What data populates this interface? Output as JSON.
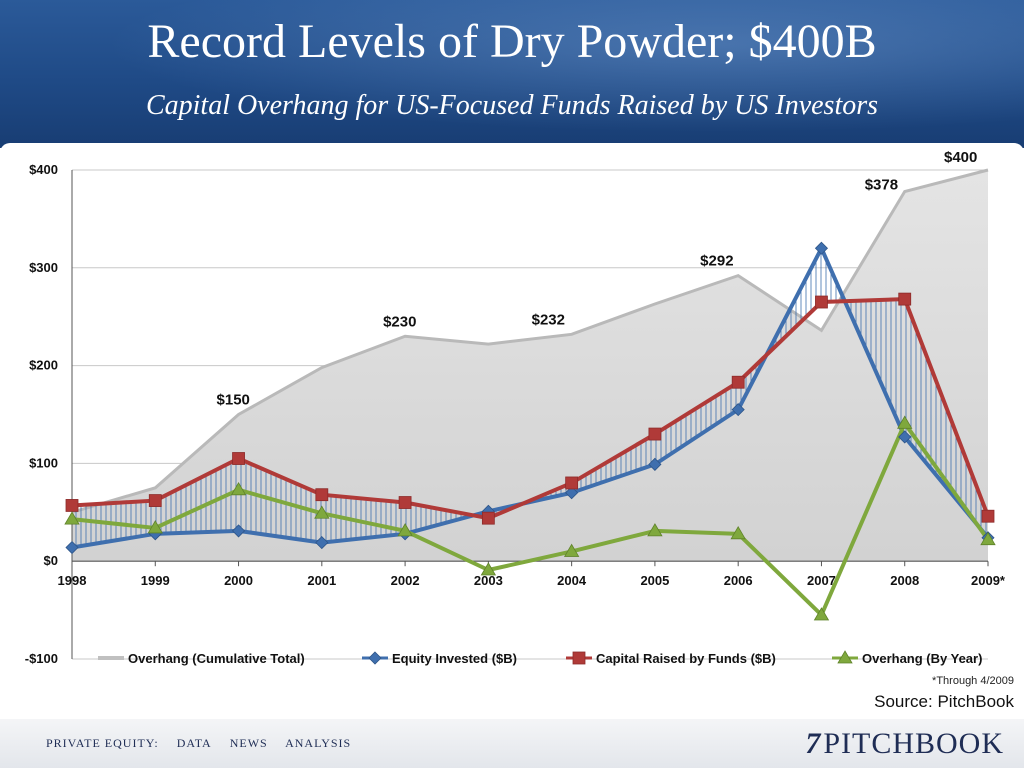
{
  "slide": {
    "title": "Record Levels of Dry Powder; $400B",
    "subtitle": "Capital Overhang for US-Focused Funds Raised by US Investors"
  },
  "footer": {
    "nav": [
      "PRIVATE EQUITY:",
      "DATA",
      "NEWS",
      "ANALYSIS"
    ],
    "brand_mark": "7",
    "brand_name": "PITCHBOOK"
  },
  "notes": {
    "through": "*Through 4/2009",
    "source": "Source: PitchBook"
  },
  "chart_data": {
    "type": "line",
    "categories": [
      "1998",
      "1999",
      "2000",
      "2001",
      "2002",
      "2003",
      "2004",
      "2005",
      "2006",
      "2007",
      "2008",
      "2009*"
    ],
    "ylim": [
      -100,
      400
    ],
    "y_ticks": [
      -100,
      0,
      100,
      200,
      300,
      400
    ],
    "y_tick_labels": [
      "-$100",
      "$0",
      "$100",
      "$200",
      "$300",
      "$400"
    ],
    "grid": true,
    "legend_position": "bottom",
    "series": [
      {
        "name": "Overhang (Cumulative Total)",
        "kind": "area",
        "color": "#cfcfcf",
        "values": [
          50,
          75,
          150,
          198,
          230,
          222,
          232,
          263,
          292,
          236,
          378,
          400
        ]
      },
      {
        "name": "Equity Invested ($B)",
        "kind": "line",
        "marker": "diamond",
        "color": "#3f6fae",
        "values": [
          14,
          28,
          31,
          19,
          28,
          51,
          70,
          99,
          155,
          320,
          127,
          24
        ]
      },
      {
        "name": "Capital Raised by Funds ($B)",
        "kind": "line",
        "marker": "square",
        "color": "#b03a38",
        "values": [
          57,
          62,
          105,
          68,
          60,
          44,
          80,
          130,
          183,
          265,
          268,
          46
        ]
      },
      {
        "name": "Overhang (By Year)",
        "kind": "line",
        "marker": "triangle",
        "color": "#7fa83d",
        "values": [
          43,
          34,
          73,
          49,
          31,
          -9,
          10,
          31,
          28,
          -55,
          141,
          22
        ]
      }
    ],
    "data_labels": [
      {
        "category": "2000",
        "value": 150,
        "text": "$150"
      },
      {
        "category": "2002",
        "value": 230,
        "text": "$230"
      },
      {
        "category": "2004",
        "value": 232,
        "text": "$232"
      },
      {
        "category": "2006",
        "value": 292,
        "text": "$292"
      },
      {
        "category": "2008",
        "value": 378,
        "text": "$378"
      },
      {
        "category": "2009*",
        "value": 400,
        "text": "$400"
      }
    ]
  }
}
